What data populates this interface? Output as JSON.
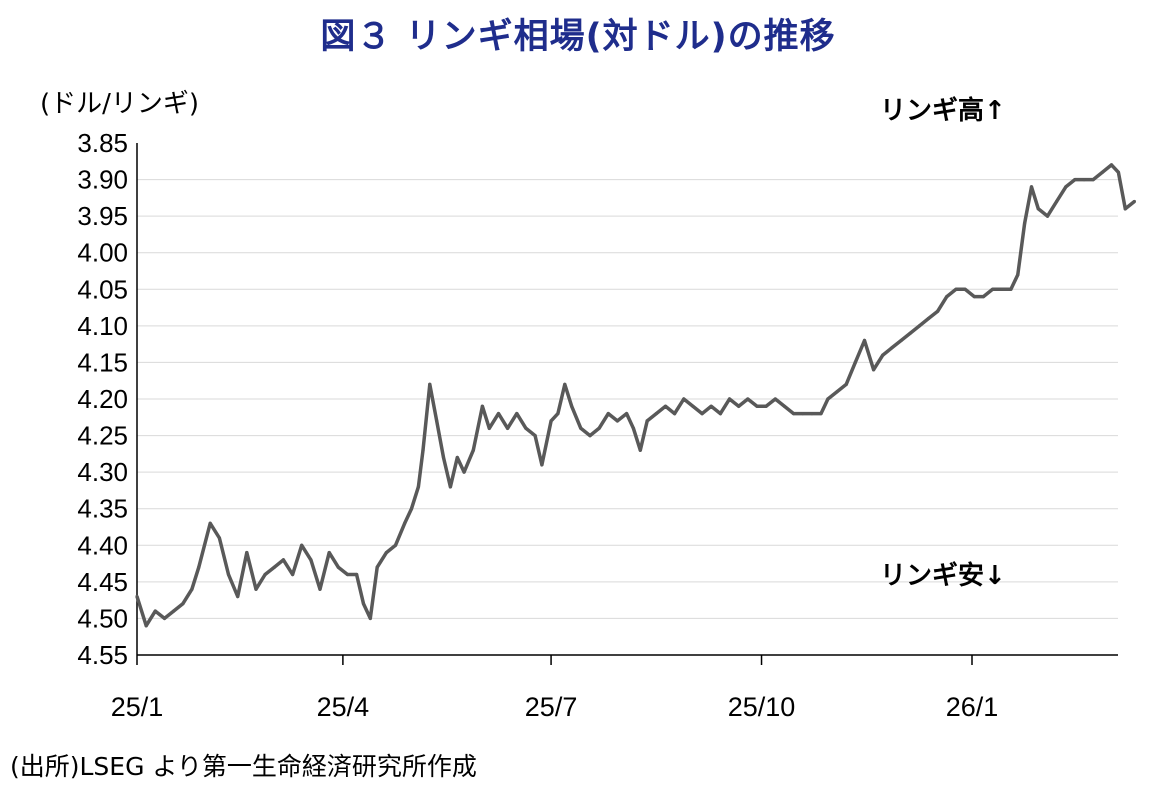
{
  "title": "図３ リンギ相場(対ドル)の推移",
  "unit_label": "(ドル/リンギ)",
  "annotations": {
    "up": "リンギ高↑",
    "down": "リンギ安↓"
  },
  "source": "(出所)LSEG より第一生命経済研究所作成",
  "colors": {
    "title": "#1f2d8c",
    "line": "#595959",
    "grid": "#d9d9d9",
    "axis": "#000000"
  },
  "chart_data": {
    "type": "line",
    "title": "図３ リンギ相場(対ドル)の推移",
    "ylabel": "(ドル/リンギ)",
    "y_inverted": true,
    "ylim": [
      3.85,
      4.55
    ],
    "yticks": [
      "3.85",
      "3.90",
      "3.95",
      "4.00",
      "4.05",
      "4.10",
      "4.15",
      "4.20",
      "4.25",
      "4.30",
      "4.35",
      "4.40",
      "4.45",
      "4.50",
      "4.55"
    ],
    "x_ticks": [
      {
        "label": "25/1",
        "date": "2025-01-01"
      },
      {
        "label": "25/4",
        "date": "2025-04-01"
      },
      {
        "label": "25/7",
        "date": "2025-07-01"
      },
      {
        "label": "25/10",
        "date": "2025-10-01"
      },
      {
        "label": "26/1",
        "date": "2026-01-01"
      }
    ],
    "xlim": [
      "2025-01-01",
      "2026-03-13"
    ],
    "grid": true,
    "legend": "none",
    "series": [
      {
        "points": [
          [
            "2025-01-01",
            4.47
          ],
          [
            "2025-01-05",
            4.51
          ],
          [
            "2025-01-09",
            4.49
          ],
          [
            "2025-01-13",
            4.5
          ],
          [
            "2025-01-17",
            4.49
          ],
          [
            "2025-01-21",
            4.48
          ],
          [
            "2025-01-25",
            4.46
          ],
          [
            "2025-01-28",
            4.43
          ],
          [
            "2025-02-02",
            4.37
          ],
          [
            "2025-02-06",
            4.39
          ],
          [
            "2025-02-10",
            4.44
          ],
          [
            "2025-02-14",
            4.47
          ],
          [
            "2025-02-18",
            4.41
          ],
          [
            "2025-02-22",
            4.46
          ],
          [
            "2025-02-26",
            4.44
          ],
          [
            "2025-03-02",
            4.43
          ],
          [
            "2025-03-06",
            4.42
          ],
          [
            "2025-03-10",
            4.44
          ],
          [
            "2025-03-14",
            4.4
          ],
          [
            "2025-03-18",
            4.42
          ],
          [
            "2025-03-22",
            4.46
          ],
          [
            "2025-03-26",
            4.41
          ],
          [
            "2025-03-30",
            4.43
          ],
          [
            "2025-04-03",
            4.44
          ],
          [
            "2025-04-07",
            4.44
          ],
          [
            "2025-04-10",
            4.48
          ],
          [
            "2025-04-13",
            4.5
          ],
          [
            "2025-04-16",
            4.43
          ],
          [
            "2025-04-20",
            4.41
          ],
          [
            "2025-04-24",
            4.4
          ],
          [
            "2025-04-28",
            4.37
          ],
          [
            "2025-05-01",
            4.35
          ],
          [
            "2025-05-04",
            4.32
          ],
          [
            "2025-05-06",
            4.27
          ],
          [
            "2025-05-09",
            4.18
          ],
          [
            "2025-05-12",
            4.23
          ],
          [
            "2025-05-15",
            4.28
          ],
          [
            "2025-05-18",
            4.32
          ],
          [
            "2025-05-21",
            4.28
          ],
          [
            "2025-05-24",
            4.3
          ],
          [
            "2025-05-28",
            4.27
          ],
          [
            "2025-06-01",
            4.21
          ],
          [
            "2025-06-04",
            4.24
          ],
          [
            "2025-06-08",
            4.22
          ],
          [
            "2025-06-12",
            4.24
          ],
          [
            "2025-06-16",
            4.22
          ],
          [
            "2025-06-20",
            4.24
          ],
          [
            "2025-06-24",
            4.25
          ],
          [
            "2025-06-27",
            4.29
          ],
          [
            "2025-07-01",
            4.23
          ],
          [
            "2025-07-04",
            4.22
          ],
          [
            "2025-07-07",
            4.18
          ],
          [
            "2025-07-10",
            4.21
          ],
          [
            "2025-07-14",
            4.24
          ],
          [
            "2025-07-18",
            4.25
          ],
          [
            "2025-07-22",
            4.24
          ],
          [
            "2025-07-26",
            4.22
          ],
          [
            "2025-07-30",
            4.23
          ],
          [
            "2025-08-03",
            4.22
          ],
          [
            "2025-08-06",
            4.24
          ],
          [
            "2025-08-09",
            4.27
          ],
          [
            "2025-08-12",
            4.23
          ],
          [
            "2025-08-16",
            4.22
          ],
          [
            "2025-08-20",
            4.21
          ],
          [
            "2025-08-24",
            4.22
          ],
          [
            "2025-08-28",
            4.2
          ],
          [
            "2025-09-01",
            4.21
          ],
          [
            "2025-09-05",
            4.22
          ],
          [
            "2025-09-09",
            4.21
          ],
          [
            "2025-09-13",
            4.22
          ],
          [
            "2025-09-17",
            4.2
          ],
          [
            "2025-09-21",
            4.21
          ],
          [
            "2025-09-25",
            4.2
          ],
          [
            "2025-09-29",
            4.21
          ],
          [
            "2025-10-03",
            4.21
          ],
          [
            "2025-10-07",
            4.2
          ],
          [
            "2025-10-11",
            4.21
          ],
          [
            "2025-10-15",
            4.22
          ],
          [
            "2025-10-19",
            4.22
          ],
          [
            "2025-10-23",
            4.22
          ],
          [
            "2025-10-27",
            4.22
          ],
          [
            "2025-10-30",
            4.2
          ],
          [
            "2025-11-03",
            4.19
          ],
          [
            "2025-11-07",
            4.18
          ],
          [
            "2025-11-11",
            4.15
          ],
          [
            "2025-11-15",
            4.12
          ],
          [
            "2025-11-19",
            4.16
          ],
          [
            "2025-11-23",
            4.14
          ],
          [
            "2025-11-27",
            4.13
          ],
          [
            "2025-12-01",
            4.12
          ],
          [
            "2025-12-05",
            4.11
          ],
          [
            "2025-12-09",
            4.1
          ],
          [
            "2025-12-13",
            4.09
          ],
          [
            "2025-12-17",
            4.08
          ],
          [
            "2025-12-21",
            4.06
          ],
          [
            "2025-12-25",
            4.05
          ],
          [
            "2025-12-29",
            4.05
          ],
          [
            "2026-01-02",
            4.06
          ],
          [
            "2026-01-06",
            4.06
          ],
          [
            "2026-01-10",
            4.05
          ],
          [
            "2026-01-14",
            4.05
          ],
          [
            "2026-01-18",
            4.05
          ],
          [
            "2026-01-21",
            4.03
          ],
          [
            "2026-01-24",
            3.96
          ],
          [
            "2026-01-27",
            3.91
          ],
          [
            "2026-01-30",
            3.94
          ],
          [
            "2026-02-03",
            3.95
          ],
          [
            "2026-02-07",
            3.93
          ],
          [
            "2026-02-11",
            3.91
          ],
          [
            "2026-02-15",
            3.9
          ],
          [
            "2026-02-19",
            3.9
          ],
          [
            "2026-02-23",
            3.9
          ],
          [
            "2026-02-27",
            3.89
          ],
          [
            "2026-03-03",
            3.88
          ],
          [
            "2026-03-06",
            3.89
          ],
          [
            "2026-03-09",
            3.94
          ],
          [
            "2026-03-13",
            3.93
          ]
        ]
      }
    ]
  }
}
